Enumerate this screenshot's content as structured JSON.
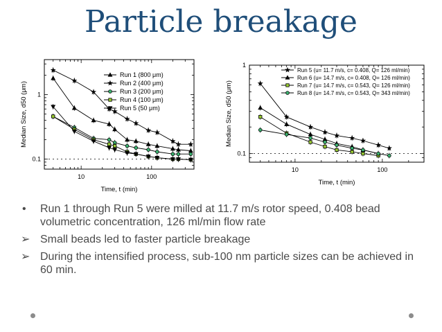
{
  "slide": {
    "title": "Particle breakage",
    "bullets": [
      {
        "marker": "•",
        "text": "Run 1 through Run 5 were milled at 11.7 m/s rotor speed, 0.408 bead volumetric concentration, 126 ml/min flow rate"
      },
      {
        "marker": "➢",
        "text": "Small beads led to faster particle breakage"
      },
      {
        "marker": "➢",
        "text": "During the  intensified process,  sub-100  nm  particle sizes can be achieved in 60 min."
      }
    ]
  },
  "chart_data": [
    {
      "type": "line",
      "xscale": "log",
      "yscale": "log",
      "xlim": [
        3,
        400
      ],
      "ylim": [
        0.07,
        3.5
      ],
      "xticks": [
        10,
        100
      ],
      "yticks": [
        0.1,
        1
      ],
      "xlabel": "Time, t (min)",
      "ylabel": "Median Size, d50 (μm)",
      "legend_position": "top-right",
      "series": [
        {
          "name": "Run 1 (800 μm)",
          "marker": "triangle-up",
          "x": [
            4,
            8,
            15,
            25,
            30,
            45,
            60,
            90,
            120,
            200,
            240,
            360
          ],
          "y": [
            1.8,
            0.62,
            0.4,
            0.35,
            0.29,
            0.2,
            0.19,
            0.17,
            0.16,
            0.145,
            0.14,
            0.135
          ]
        },
        {
          "name": "Run 2 (400 μm)",
          "marker": "star",
          "x": [
            4,
            8,
            15,
            25,
            30,
            45,
            60,
            90,
            120,
            200,
            240,
            360
          ],
          "y": [
            2.4,
            1.65,
            1.1,
            0.6,
            0.55,
            0.42,
            0.36,
            0.28,
            0.26,
            0.19,
            0.17,
            0.17
          ]
        },
        {
          "name": "Run 3 (200 μm)",
          "marker": "circle",
          "x": [
            4,
            8,
            15,
            25,
            30,
            45,
            60,
            90,
            120,
            200,
            240,
            360
          ],
          "y": [
            0.46,
            0.31,
            0.21,
            0.2,
            0.18,
            0.16,
            0.15,
            0.14,
            0.13,
            0.12,
            0.12,
            0.12
          ]
        },
        {
          "name": "Run 4 (100 μm)",
          "marker": "square",
          "x": [
            4,
            8,
            15,
            25,
            30,
            45,
            60,
            90,
            120,
            200,
            240,
            360
          ],
          "y": [
            0.46,
            0.29,
            0.2,
            0.17,
            0.16,
            0.13,
            0.12,
            0.11,
            0.105,
            0.1,
            0.1,
            0.098
          ]
        },
        {
          "name": "Run 5 (50 μm)",
          "marker": "triangle-down",
          "x": [
            4,
            8,
            15,
            25,
            30,
            45,
            60,
            90,
            120,
            200,
            240,
            360
          ],
          "y": [
            0.65,
            0.27,
            0.19,
            0.15,
            0.14,
            0.125,
            0.12,
            0.11,
            0.105,
            0.1,
            0.1,
            0.098
          ]
        }
      ]
    },
    {
      "type": "line",
      "xscale": "log",
      "yscale": "log",
      "xlim": [
        3,
        300
      ],
      "ylim": [
        0.08,
        1
      ],
      "xticks": [
        10,
        100
      ],
      "yticks": [
        0.1,
        1
      ],
      "xlabel": "Time,  t (min)",
      "ylabel": "Median Size, d50 (μm)",
      "legend_position": "top-right",
      "series": [
        {
          "name": "Run 5 (u= 11.7 m/s, c= 0.408, Q= 126 ml/min)",
          "marker": "star",
          "x": [
            4,
            8,
            15,
            22,
            30,
            45,
            60,
            90,
            120
          ],
          "y": [
            0.62,
            0.26,
            0.2,
            0.175,
            0.16,
            0.15,
            0.14,
            0.125,
            0.115
          ]
        },
        {
          "name": "Run 6 (u= 14.7 m/s, c= 0.408, Q= 126 ml/min)",
          "marker": "triangle-up",
          "x": [
            4,
            8,
            15,
            22,
            30,
            45,
            60,
            90
          ],
          "y": [
            0.33,
            0.215,
            0.165,
            0.145,
            0.13,
            0.12,
            0.11,
            0.1
          ]
        },
        {
          "name": "Run 7 (u= 14.7 m/s, c= 0.543, Q= 126 ml/min)",
          "marker": "square",
          "x": [
            4,
            8,
            15,
            22,
            30,
            45,
            60,
            90
          ],
          "y": [
            0.26,
            0.17,
            0.135,
            0.12,
            0.11,
            0.105,
            0.1,
            0.095
          ]
        },
        {
          "name": "Run 8 (u= 14.7 m/s, c= 0.543, Q= 343 ml/min)",
          "marker": "circle",
          "x": [
            4,
            8,
            15,
            22,
            30,
            45,
            60,
            90,
            120
          ],
          "y": [
            0.185,
            0.165,
            0.15,
            0.135,
            0.125,
            0.115,
            0.11,
            0.1,
            0.095
          ]
        }
      ]
    }
  ],
  "colors": {
    "title": "#1f4e79",
    "text": "#4a4a4a",
    "plot": "#000000",
    "dots": "#8c8c8c"
  }
}
